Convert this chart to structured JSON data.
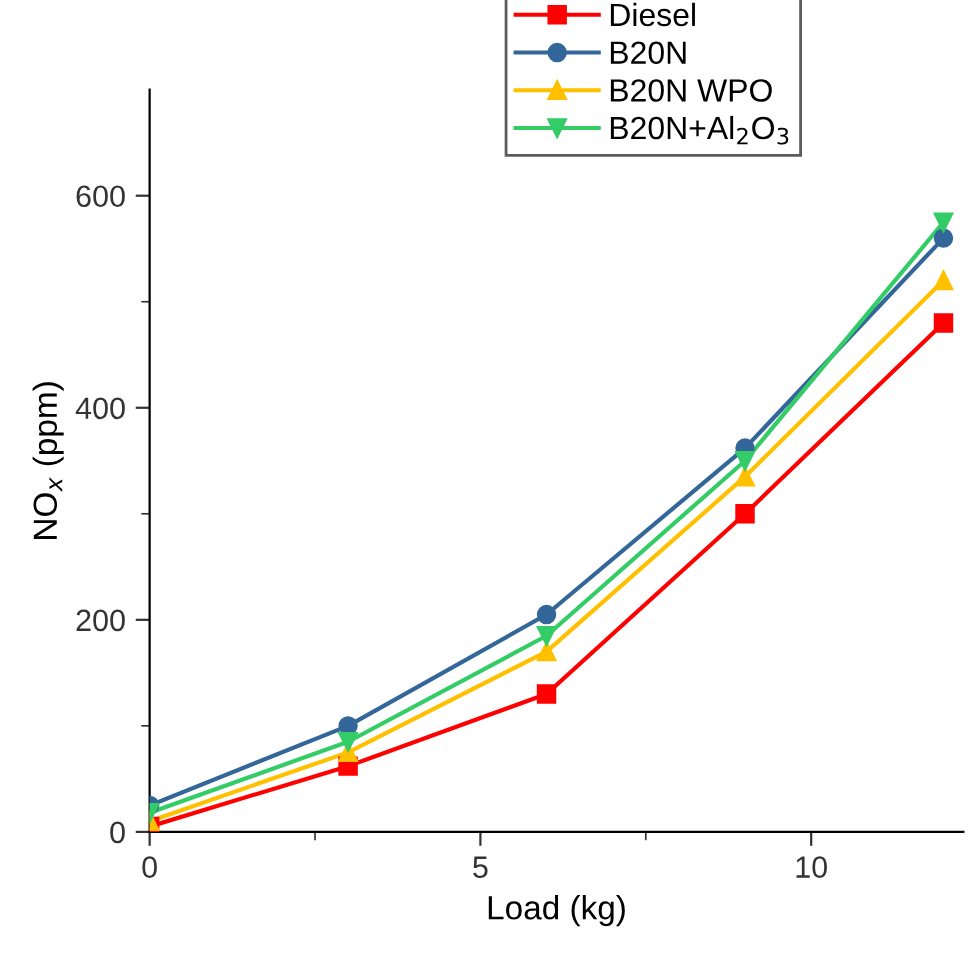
{
  "chart_data": {
    "type": "line",
    "xlabel": "Load (kg)",
    "ylabel": "NO$_{x}$ (ppm)",
    "x": [
      0,
      3,
      6,
      9,
      12
    ],
    "series": [
      {
        "name": "Diesel",
        "color": "#ff0000",
        "marker": "square",
        "values": [
          5,
          62,
          130,
          300,
          480
        ]
      },
      {
        "name": "B20N",
        "color": "#336699",
        "marker": "circle",
        "values": [
          25,
          100,
          205,
          362,
          560
        ]
      },
      {
        "name": "B20N WPO",
        "color": "#ffc000",
        "marker": "triangle",
        "values": [
          10,
          75,
          170,
          335,
          520
        ]
      },
      {
        "name": "B20N+Al$_{2}$O$_{3}$",
        "color": "#33cc66",
        "marker": "triangle_down",
        "values": [
          18,
          85,
          185,
          350,
          575
        ]
      }
    ],
    "xlim": [
      0,
      12.3
    ],
    "ylim": [
      0,
      700
    ],
    "xticks": [
      0,
      5,
      10
    ],
    "yticks": [
      0,
      200,
      400,
      600
    ],
    "grid": false,
    "legend": "top right",
    "line_style": "solid"
  }
}
